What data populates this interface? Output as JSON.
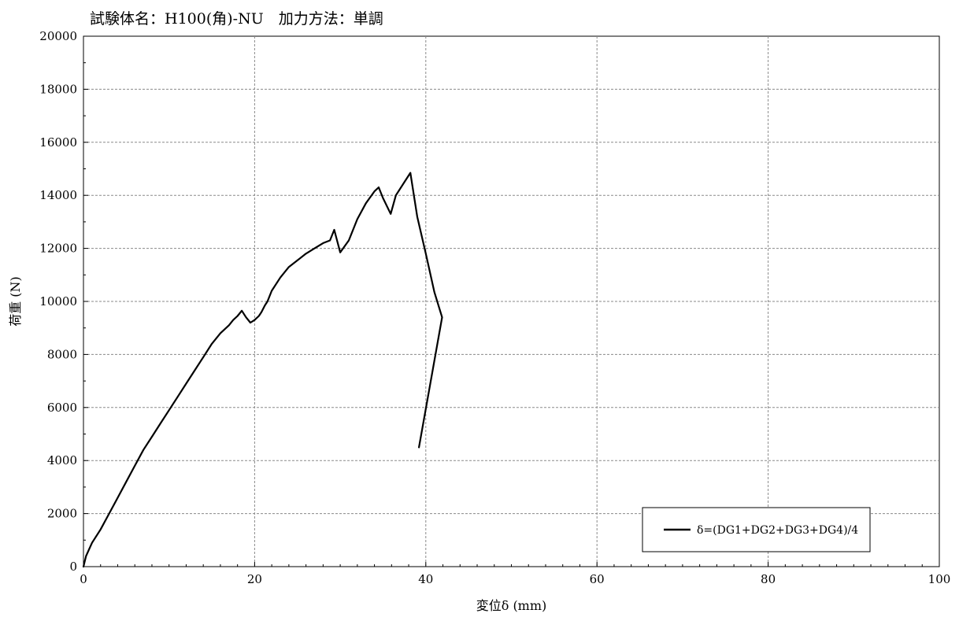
{
  "chart_data": {
    "type": "line",
    "title": "試験体名：H100(角)-NU　加力方法：単調",
    "xlabel": "変位δ (mm)",
    "ylabel": "荷重 (N)",
    "xlim": [
      0,
      100
    ],
    "ylim": [
      0,
      20000
    ],
    "x_ticks": [
      "0",
      "20",
      "40",
      "60",
      "80",
      "100"
    ],
    "y_ticks": [
      "0",
      "2000",
      "4000",
      "6000",
      "8000",
      "10000",
      "12000",
      "14000",
      "16000",
      "18000",
      "20000"
    ],
    "grid": true,
    "legend_position": "bottom-right",
    "series": [
      {
        "name": "δ=(DG1+DG2+DG3+DG4)/4",
        "color": "#000000",
        "x": [
          0,
          0.3,
          1.0,
          2.0,
          3.0,
          4.0,
          5.0,
          6.0,
          7.0,
          8.0,
          9.0,
          10.0,
          11.0,
          12.0,
          13.0,
          14.0,
          15.0,
          16.0,
          17.0,
          17.5,
          18.0,
          18.5,
          19.0,
          19.5,
          20.0,
          20.5,
          20.8,
          21.2,
          21.5,
          22.0,
          23.0,
          24.0,
          25.0,
          26.0,
          27.0,
          28.0,
          28.8,
          29.3,
          30.0,
          31.0,
          31.5,
          32.0,
          33.0,
          34.0,
          34.5,
          35.0,
          35.9,
          36.5,
          37.5,
          38.2,
          39.0,
          40.0,
          41.0,
          41.9,
          39.2
        ],
        "y": [
          0,
          400,
          900,
          1400,
          2000,
          2600,
          3200,
          3800,
          4400,
          4900,
          5400,
          5900,
          6400,
          6900,
          7400,
          7900,
          8400,
          8800,
          9100,
          9300,
          9450,
          9650,
          9400,
          9200,
          9300,
          9450,
          9600,
          9850,
          10000,
          10400,
          10900,
          11300,
          11550,
          11800,
          12000,
          12200,
          12300,
          12700,
          11850,
          12300,
          12700,
          13100,
          13700,
          14150,
          14300,
          13900,
          13300,
          14000,
          14500,
          14850,
          13200,
          11800,
          10350,
          9400,
          4500
        ]
      }
    ]
  }
}
